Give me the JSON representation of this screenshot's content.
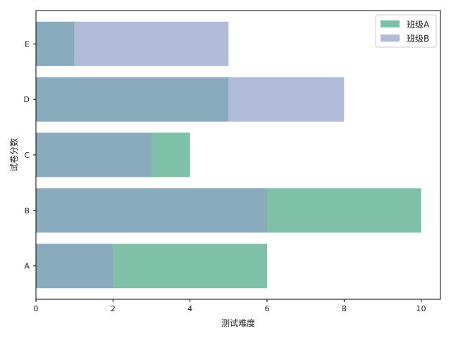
{
  "chart_data": {
    "type": "bar",
    "orientation": "horizontal",
    "overlay": true,
    "categories": [
      "A",
      "B",
      "C",
      "D",
      "E"
    ],
    "series": [
      {
        "name": "班级A",
        "values": [
          6,
          10,
          4,
          5,
          1
        ],
        "color": "#7fc0a8"
      },
      {
        "name": "班级B",
        "values": [
          2,
          6,
          3,
          8,
          5
        ],
        "color": "#b0bbd8"
      }
    ],
    "overlap_color": "#8aabbd",
    "xlabel": "测试难度",
    "ylabel": "试卷分数",
    "xlim": [
      0,
      10.5
    ],
    "xticks": [
      0,
      2,
      4,
      6,
      8,
      10
    ],
    "grid": false,
    "legend_position": "top-right"
  }
}
